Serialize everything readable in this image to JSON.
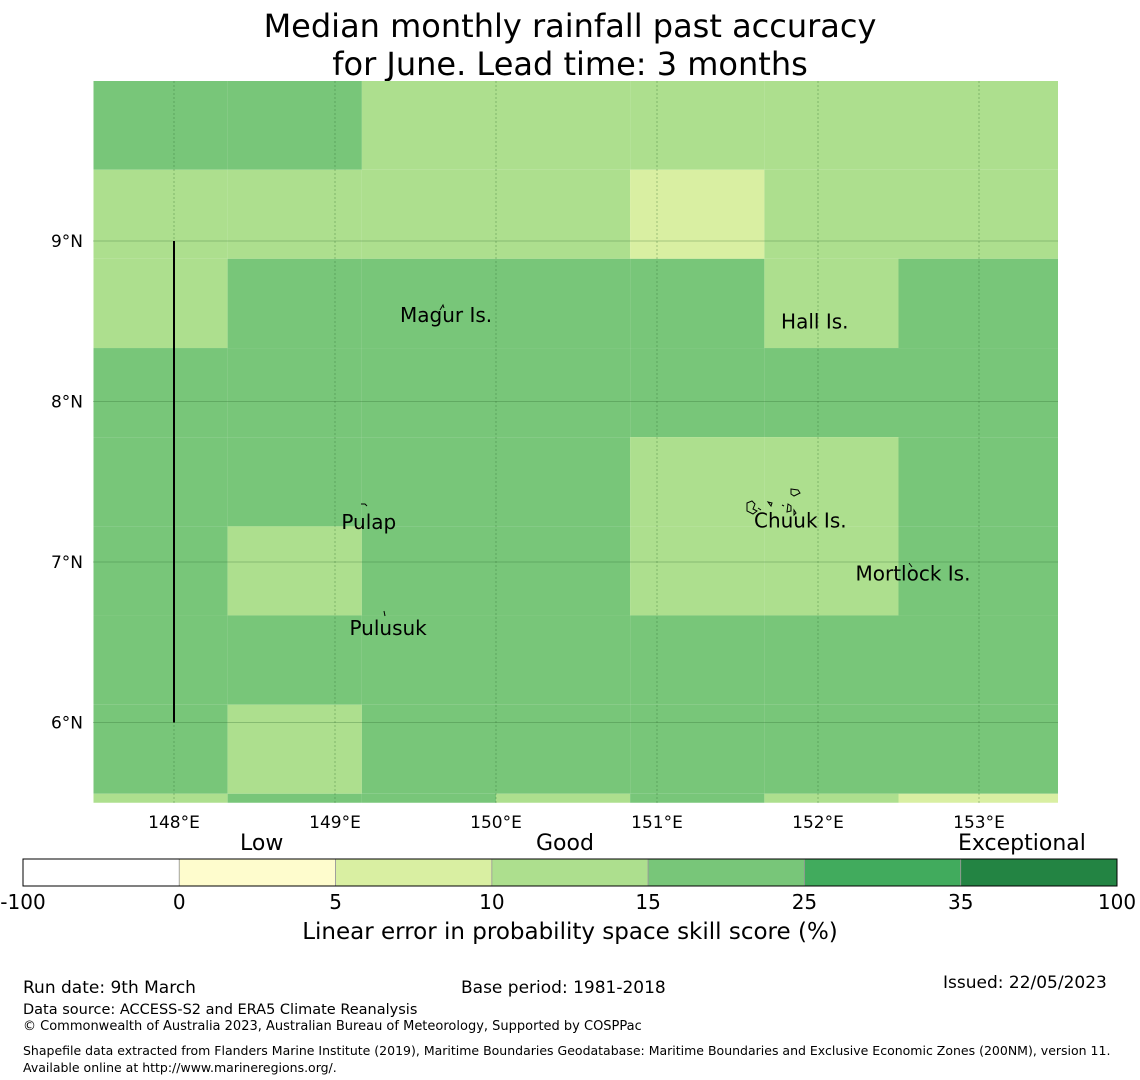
{
  "title": {
    "line1": "Median monthly rainfall past accuracy",
    "line2": "for June. Lead time: 3 months"
  },
  "map": {
    "lon_range": [
      147.5,
      153.5
    ],
    "lat_range": [
      5.5,
      10.0
    ],
    "grid_lon": [
      148,
      149,
      150,
      151,
      152,
      153
    ],
    "grid_lat": [
      6,
      7,
      8,
      9
    ],
    "lon_tick_labels": [
      "148°E",
      "149°E",
      "150°E",
      "151°E",
      "152°E",
      "153°E"
    ],
    "lat_tick_labels": [
      "6°N",
      "7°N",
      "8°N",
      "9°N"
    ],
    "cell_colors": [
      "#ffffff",
      "#fefccd",
      "#d9efa2",
      "#addf8e",
      "#78c679",
      "#41ab5d",
      "#238443"
    ],
    "cell_lon_edges": [
      147.5,
      148.333,
      149.167,
      150.0,
      150.833,
      151.667,
      152.5,
      153.5
    ],
    "cell_lat_edges": [
      10.0,
      9.444,
      8.889,
      8.333,
      7.778,
      7.222,
      6.667,
      6.111,
      5.556,
      5.5
    ],
    "cells": [
      [
        4,
        4,
        3,
        3,
        3,
        3,
        3
      ],
      [
        3,
        3,
        3,
        3,
        2,
        3,
        3
      ],
      [
        3,
        4,
        4,
        4,
        4,
        3,
        4
      ],
      [
        4,
        4,
        4,
        4,
        4,
        4,
        4
      ],
      [
        4,
        4,
        4,
        4,
        3,
        3,
        4
      ],
      [
        4,
        3,
        4,
        4,
        3,
        3,
        4
      ],
      [
        4,
        4,
        4,
        4,
        4,
        4,
        4
      ],
      [
        4,
        3,
        4,
        4,
        4,
        4,
        4
      ],
      [
        3,
        4,
        4,
        3,
        4,
        3,
        2
      ]
    ],
    "boundary_line": {
      "lon": 148.0,
      "lat_from": 6.0,
      "lat_to": 9.0
    },
    "places": [
      {
        "name": "Magur Is.",
        "lon": 149.69,
        "lat": 8.53
      },
      {
        "name": "Hall Is.",
        "lon": 151.98,
        "lat": 8.49
      },
      {
        "name": "Pulap",
        "lon": 149.21,
        "lat": 7.24
      },
      {
        "name": "Chuuk Is.",
        "lon": 151.89,
        "lat": 7.25
      },
      {
        "name": "Mortlock Is.",
        "lon": 152.59,
        "lat": 6.92
      },
      {
        "name": "Pulusuk",
        "lon": 149.33,
        "lat": 6.58
      }
    ]
  },
  "colorbar": {
    "category_labels": [
      "Low",
      "Good",
      "Exceptional"
    ],
    "ticks": [
      "-100",
      "0",
      "5",
      "10",
      "15",
      "25",
      "35",
      "100"
    ],
    "colors": [
      "#ffffff",
      "#fefccd",
      "#d9efa2",
      "#addf8e",
      "#78c679",
      "#41ab5d",
      "#238443"
    ],
    "axis_label": "Linear error in probability space skill score (%)"
  },
  "footer": {
    "run_date": "Run date: 9th March",
    "base_period": "Base period: 1981-2018",
    "issued": "Issued: 22/05/2023",
    "data_source": "Data source: ACCESS-S2 and ERA5 Climate Reanalysis",
    "copyright": "© Commonwealth of Australia 2023, Australian Bureau of Meteorology, Supported by COSPPac",
    "shapefile": "Shapefile data extracted from Flanders Marine Institute (2019), Maritime Boundaries Geodatabase: Maritime Boundaries and Exclusive Economic Zones (200NM), version 11. Available online at http://www.marineregions.org/."
  }
}
